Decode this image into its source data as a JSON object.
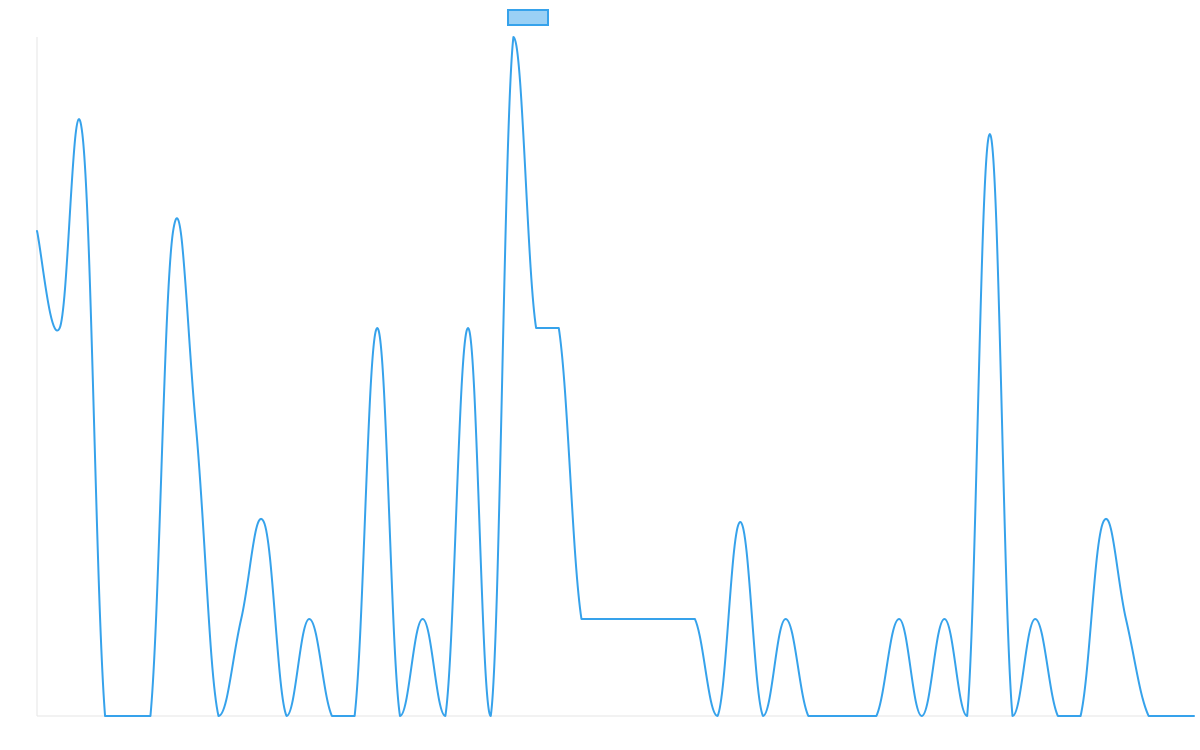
{
  "chart_data": {
    "type": "line",
    "title": "",
    "xlabel": "",
    "ylabel": "",
    "ylim": [
      0,
      7
    ],
    "grid": false,
    "legend": {
      "position": "top-center",
      "entries": [
        {
          "label": "",
          "color": "#36a2eb",
          "fill": "#9ad0f5"
        }
      ]
    },
    "x": [
      0,
      1,
      2,
      3,
      4,
      5,
      6,
      7,
      8,
      9,
      10,
      11,
      12,
      13,
      14,
      15,
      16,
      17,
      18,
      19,
      20,
      21,
      22,
      23,
      24,
      25,
      26,
      27,
      28,
      29,
      30,
      31,
      32,
      33,
      34,
      35,
      36,
      37,
      38,
      39,
      40,
      41,
      42,
      43,
      44,
      45,
      46,
      47,
      48,
      49,
      50,
      51
    ],
    "series": [
      {
        "name": "",
        "color": "#36a2eb",
        "smooth": true,
        "values": [
          5,
          4,
          6,
          0,
          0,
          0,
          5,
          3,
          0,
          1,
          2,
          0,
          1,
          0,
          0,
          4,
          0,
          1,
          0,
          4,
          0,
          7,
          4,
          4,
          1,
          1,
          1,
          1,
          1,
          1,
          0,
          2,
          0,
          1,
          0,
          0,
          0,
          0,
          1,
          0,
          1,
          0,
          6,
          0,
          1,
          0,
          0,
          2,
          1,
          0,
          0,
          0
        ]
      }
    ]
  }
}
